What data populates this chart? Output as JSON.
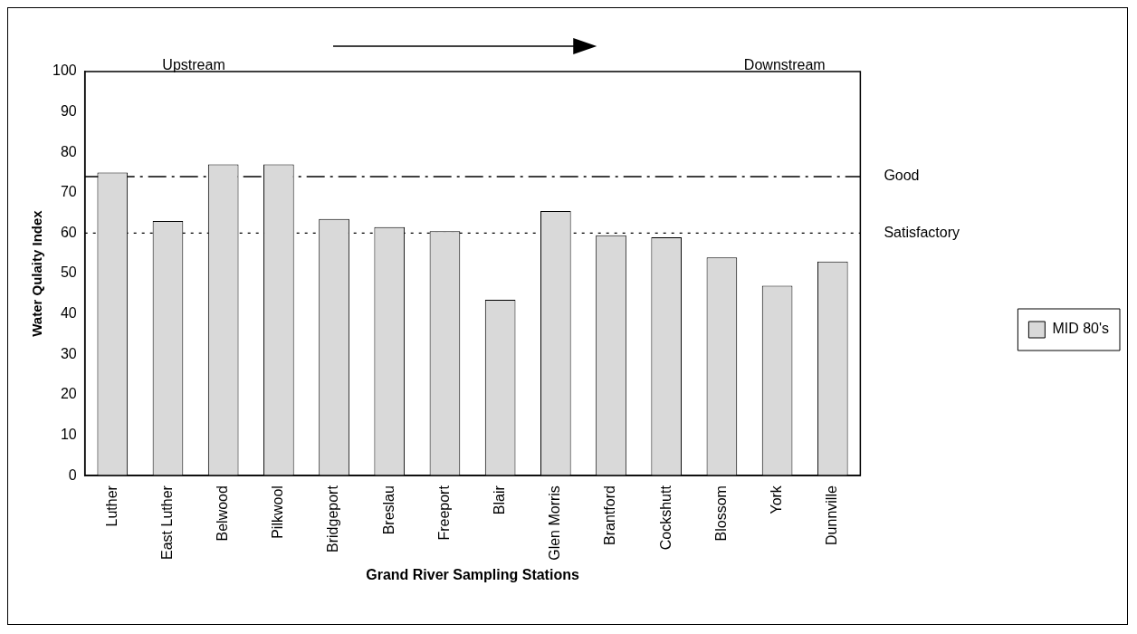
{
  "chart_data": {
    "type": "bar",
    "xlabel": "Grand River Sampling Stations",
    "ylabel": "Water Qulaity Index",
    "categories": [
      "Luther",
      "East Luther",
      "Belwood",
      "Pilkwool",
      "Bridgeport",
      "Breslau",
      "Freeport",
      "Blair",
      "Glen Morris",
      "Brantford",
      "Cockshutt",
      "Blossom",
      "York",
      "Dunnville"
    ],
    "series": [
      {
        "name": "MID 80's",
        "color": "#d9d9d9",
        "values": [
          75,
          63,
          77,
          77,
          63.5,
          61.5,
          60.5,
          43.5,
          65.5,
          59.5,
          59,
          54,
          47,
          53
        ]
      }
    ],
    "ylim": [
      0,
      100
    ],
    "yticks": [
      0,
      10,
      20,
      30,
      40,
      50,
      60,
      70,
      80,
      90,
      100
    ],
    "grid": false,
    "legend": "right",
    "ref_lines": [
      {
        "axis": "y",
        "value": 74,
        "label": "Good",
        "line_style": "dashdot"
      },
      {
        "axis": "y",
        "value": 60,
        "label": "Satisfactory",
        "line_style": "dotted"
      }
    ],
    "annotations": [
      "Upstream",
      "Downstream"
    ]
  }
}
